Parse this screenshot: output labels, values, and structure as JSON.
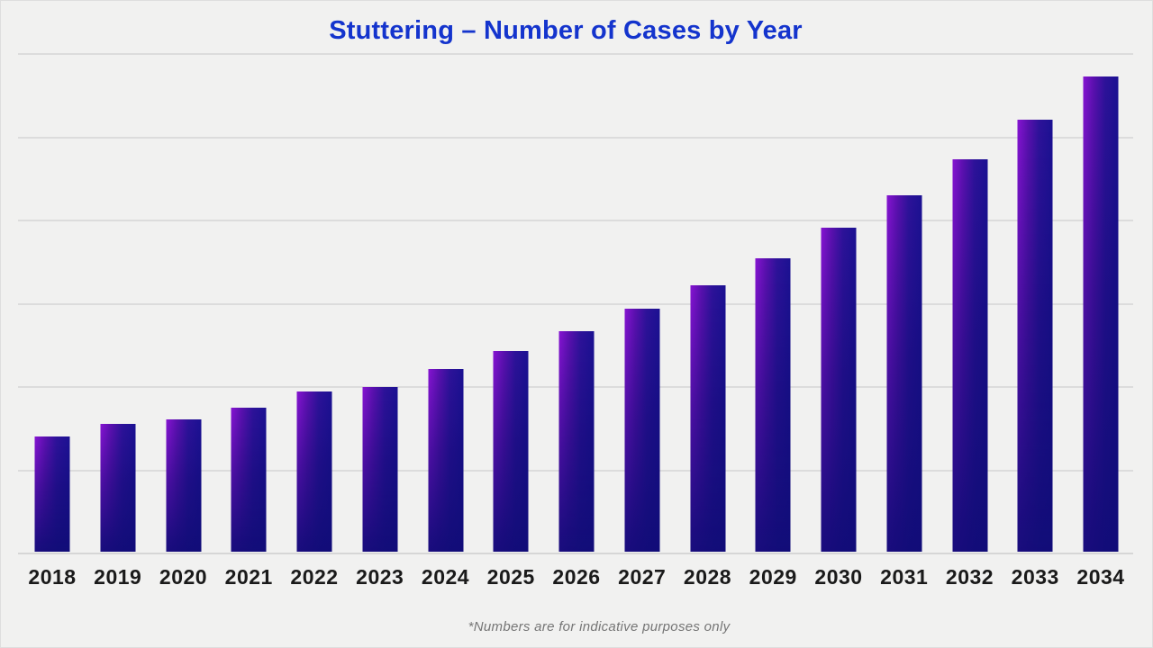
{
  "page": {
    "background": "#f1f1f0"
  },
  "chart_data": {
    "type": "bar",
    "title": "Stuttering – Number of Cases by Year",
    "footnote": "*Numbers are for indicative purposes only",
    "xlabel": "",
    "ylabel": "",
    "categories": [
      "2018",
      "2019",
      "2020",
      "2021",
      "2022",
      "2023",
      "2024",
      "2025",
      "2026",
      "2027",
      "2028",
      "2029",
      "2030",
      "2031",
      "2032",
      "2033",
      "2034"
    ],
    "values": [
      23.1,
      25.5,
      26.4,
      28.9,
      32.0,
      33.0,
      36.5,
      40.1,
      44.2,
      48.6,
      53.4,
      58.8,
      64.8,
      71.3,
      78.5,
      86.5,
      95.1
    ],
    "value_note": "y-axis has no tick labels; values estimated as percent of axis maximum (top gridline = 100)",
    "ylim": [
      0,
      100
    ],
    "gridline_intervals": 6,
    "grid": "horizontal only",
    "legend": "none",
    "colors": {
      "background": "#f1f1f0",
      "title": "#1434cd",
      "bar_gradient_left": "#8714d2",
      "bar_gradient_right": "#1b1192",
      "bar_gradient_bottom": "#140f85",
      "gridline": "#dcdcdc",
      "baseline": "#d6d6d6",
      "tick_label": "#1a1a1a",
      "footnote": "#757575"
    }
  }
}
